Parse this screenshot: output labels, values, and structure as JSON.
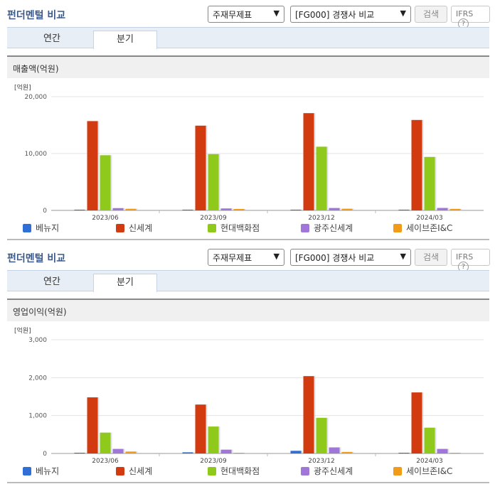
{
  "header": {
    "title": "펀더멘털 비교",
    "select1": "주재무제표",
    "select2": "[FG000] 경쟁사 비교",
    "search_label": "검색",
    "ifrs_label": "IFRS",
    "help": "?"
  },
  "tabs": [
    "연간",
    "분기"
  ],
  "colors": {
    "베뉴지": "#2f6fd6",
    "신세계": "#d23b10",
    "현대백화점": "#8ec91c",
    "광주신세계": "#a077d8",
    "세이브존I&C": "#f19b18"
  },
  "panels": [
    {
      "subtitle": "매출액(억원)"
    },
    {
      "subtitle": "영업이익(억원)"
    }
  ],
  "chart_data": [
    {
      "type": "bar",
      "title": "매출액(억원)",
      "unit": "[억원]",
      "categories": [
        "2023/06",
        "2023/09",
        "2023/12",
        "2024/03"
      ],
      "ylim": [
        0,
        20000
      ],
      "yticks": [
        "0",
        "10,000",
        "20,000"
      ],
      "series": [
        {
          "name": "베뉴지",
          "values": [
            60,
            60,
            60,
            60
          ]
        },
        {
          "name": "신세계",
          "values": [
            15700,
            14900,
            17100,
            15900
          ]
        },
        {
          "name": "현대백화점",
          "values": [
            9700,
            9900,
            11200,
            9400
          ]
        },
        {
          "name": "광주신세계",
          "values": [
            400,
            340,
            420,
            430
          ]
        },
        {
          "name": "세이브존I&C",
          "values": [
            280,
            250,
            290,
            260
          ]
        }
      ]
    },
    {
      "type": "bar",
      "title": "영업이익(억원)",
      "unit": "[억원]",
      "categories": [
        "2023/06",
        "2023/09",
        "2023/12",
        "2024/03"
      ],
      "ylim": [
        0,
        3000
      ],
      "yticks": [
        "0",
        "1,000",
        "2,000",
        "3,000"
      ],
      "series": [
        {
          "name": "베뉴지",
          "values": [
            10,
            30,
            70,
            10
          ]
        },
        {
          "name": "신세계",
          "values": [
            1480,
            1290,
            2040,
            1610
          ]
        },
        {
          "name": "현대백화점",
          "values": [
            550,
            710,
            940,
            680
          ]
        },
        {
          "name": "광주신세계",
          "values": [
            120,
            100,
            160,
            120
          ]
        },
        {
          "name": "세이브존I&C",
          "values": [
            50,
            10,
            40,
            10
          ]
        }
      ]
    }
  ]
}
